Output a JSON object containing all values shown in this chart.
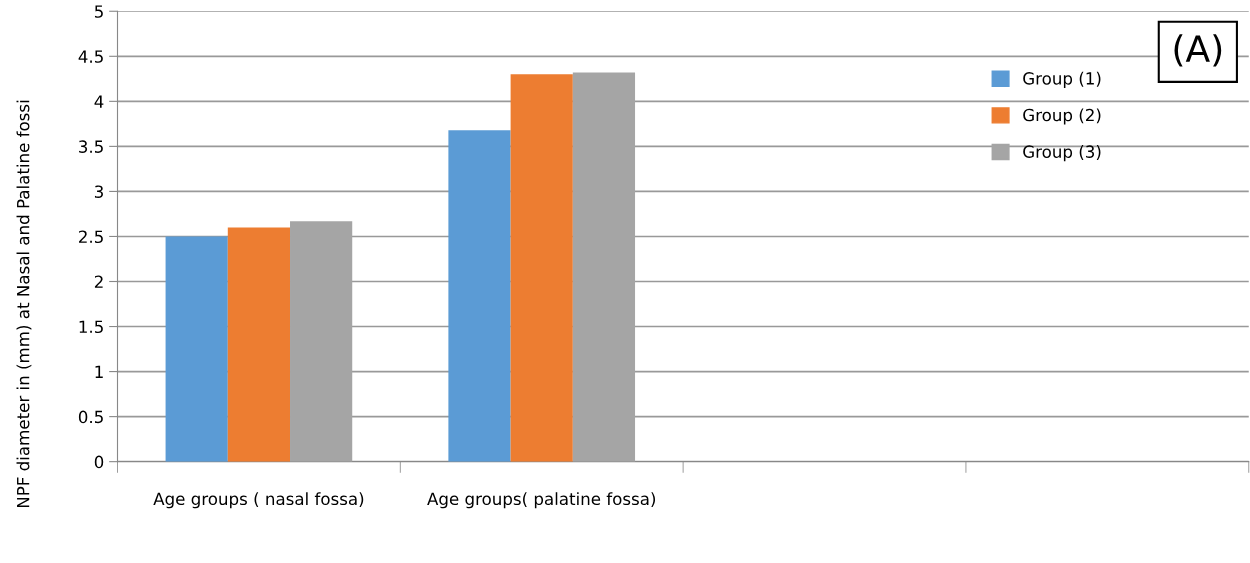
{
  "chart_data": {
    "type": "bar",
    "categories": [
      "Age groups ( nasal fossa)",
      "Age groups( palatine fossa)",
      null,
      null
    ],
    "series": [
      {
        "name": "Group (1)",
        "color": "#5b9bd5",
        "values": [
          2.5,
          3.68,
          null,
          null
        ]
      },
      {
        "name": "Group (2)",
        "color": "#ed7d31",
        "values": [
          2.6,
          4.3,
          null,
          null
        ]
      },
      {
        "name": "Group (3)",
        "color": "#a5a5a5",
        "values": [
          2.67,
          4.32,
          null,
          null
        ]
      }
    ],
    "ylabel": "NPF diameter in (mm) at Nasal and Palatine fossi",
    "annotations": [
      "(A)"
    ],
    "ylim": [
      0,
      5
    ],
    "yticks": [
      0,
      0.5,
      1,
      1.5,
      2,
      2.5,
      3,
      3.5,
      4,
      4.5,
      5
    ],
    "grid": "y",
    "legend": "right"
  }
}
